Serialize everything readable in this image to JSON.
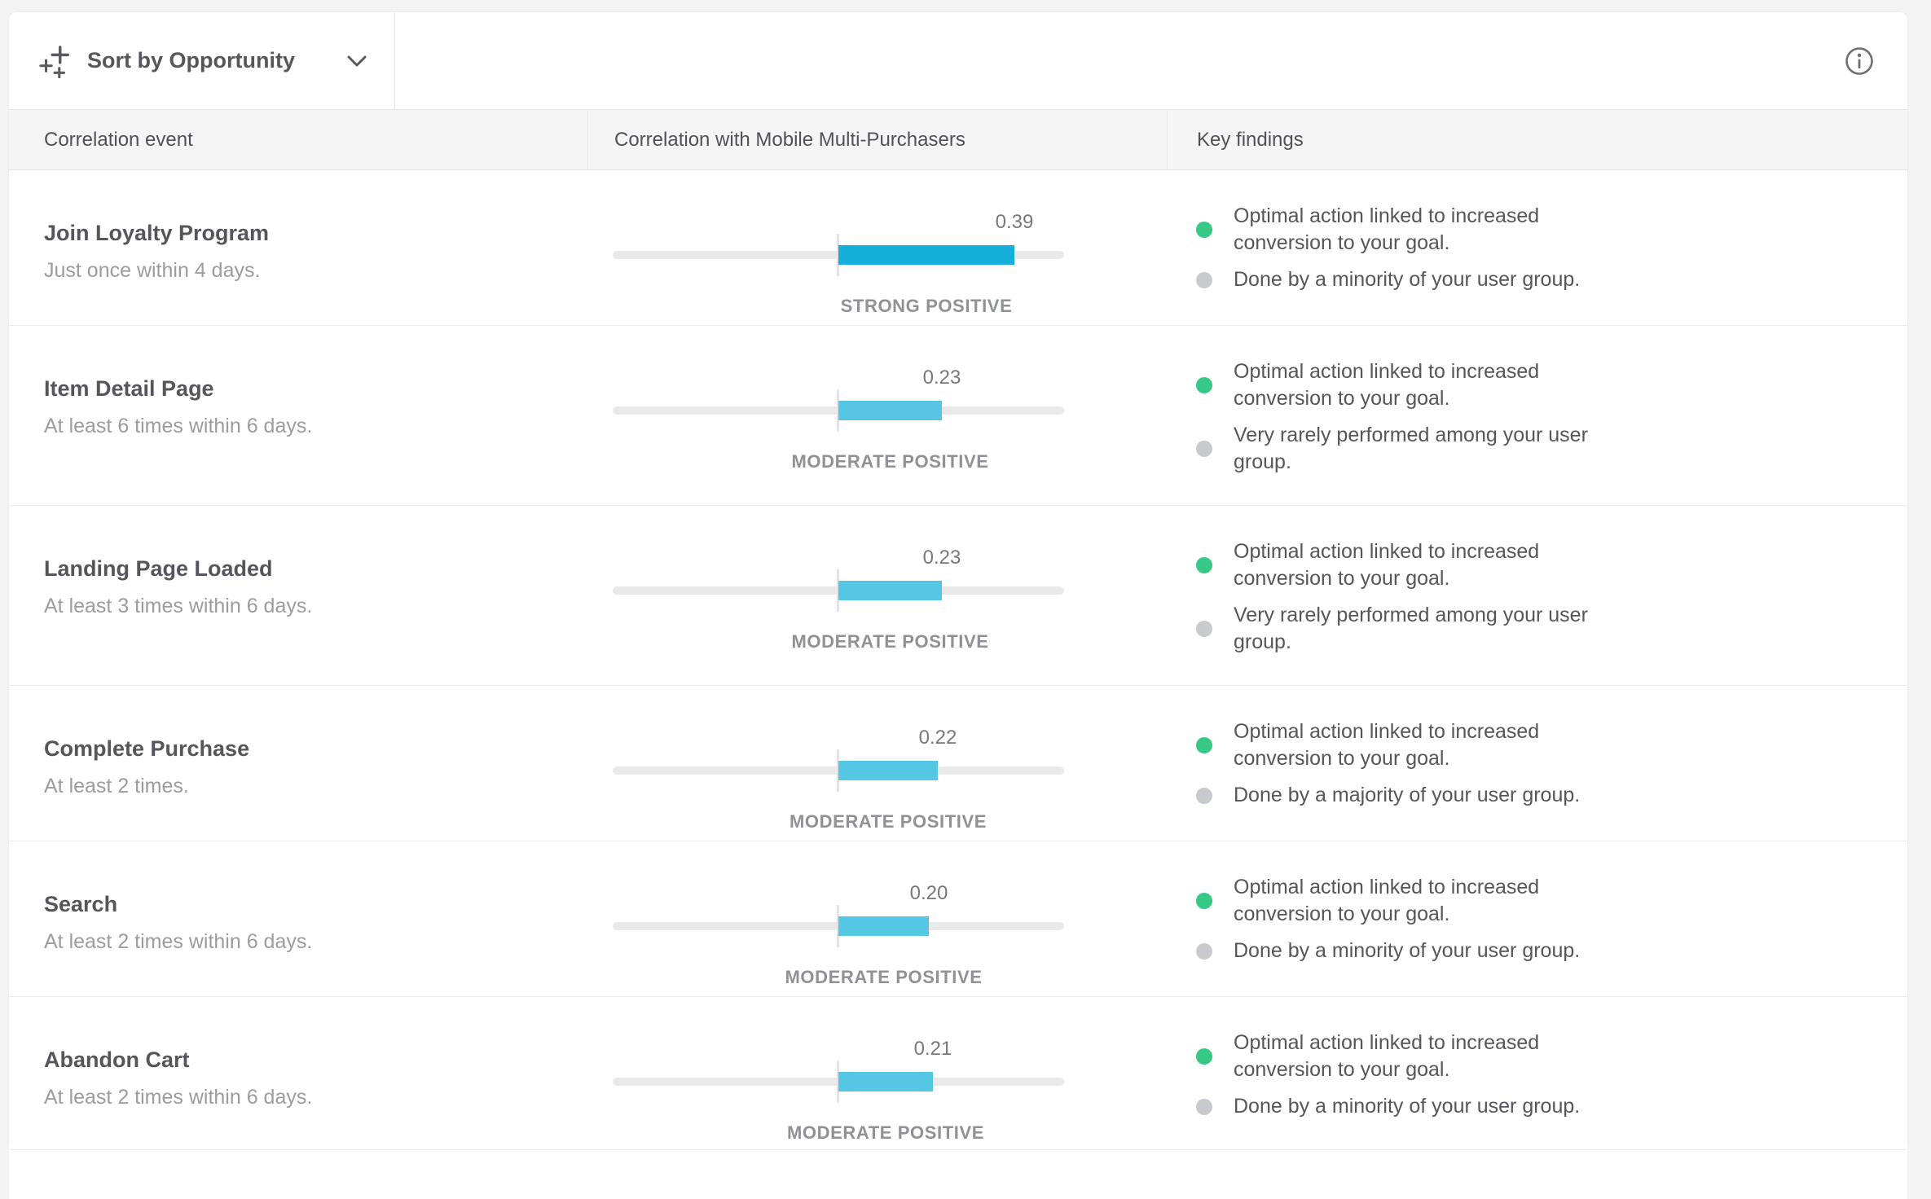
{
  "toolbar": {
    "sort_label": "Sort by Opportunity",
    "sort_icon": "sparkle-plus-icon",
    "info_icon": "info-circle-icon"
  },
  "table": {
    "columns": {
      "event": "Correlation event",
      "correlation": "Correlation with Mobile Multi-Purchasers",
      "findings": "Key findings"
    }
  },
  "colors": {
    "bar_strong": "#14b0d9",
    "bar_moderate": "#55c6e4",
    "dot_positive": "#36c986",
    "dot_neutral": "#c9cacd"
  },
  "chart_data": {
    "type": "bar",
    "orientation": "horizontal-diverging",
    "axis_range": [
      -0.5,
      0.5
    ],
    "categories": [
      "Join Loyalty Program",
      "Item Detail Page",
      "Landing Page Loaded",
      "Complete Purchase",
      "Search",
      "Abandon Cart"
    ],
    "values": [
      0.39,
      0.23,
      0.23,
      0.22,
      0.2,
      0.21
    ]
  },
  "rows": [
    {
      "event": "Join Loyalty Program",
      "criteria": "Just once within 4 days.",
      "value": "0.39",
      "value_num": 0.39,
      "tier": "STRONG POSITIVE",
      "strength": "strong",
      "findings": [
        {
          "dot": "positive",
          "text": "Optimal action linked to increased conversion to your goal."
        },
        {
          "dot": "neutral",
          "text": "Done by a minority of your user group."
        }
      ]
    },
    {
      "event": "Item Detail Page",
      "criteria": "At least 6 times within 6 days.",
      "value": "0.23",
      "value_num": 0.23,
      "tier": "MODERATE POSITIVE",
      "strength": "moderate",
      "findings": [
        {
          "dot": "positive",
          "text": "Optimal action linked to increased conversion to your goal."
        },
        {
          "dot": "neutral",
          "text": "Very rarely performed among your user group."
        }
      ]
    },
    {
      "event": "Landing Page Loaded",
      "criteria": "At least 3 times within 6 days.",
      "value": "0.23",
      "value_num": 0.23,
      "tier": "MODERATE POSITIVE",
      "strength": "moderate",
      "findings": [
        {
          "dot": "positive",
          "text": "Optimal action linked to increased conversion to your goal."
        },
        {
          "dot": "neutral",
          "text": "Very rarely performed among your user group."
        }
      ]
    },
    {
      "event": "Complete Purchase",
      "criteria": "At least 2 times.",
      "value": "0.22",
      "value_num": 0.22,
      "tier": "MODERATE POSITIVE",
      "strength": "moderate",
      "findings": [
        {
          "dot": "positive",
          "text": "Optimal action linked to increased conversion to your goal."
        },
        {
          "dot": "neutral",
          "text": "Done by a majority of your user group."
        }
      ]
    },
    {
      "event": "Search",
      "criteria": "At least 2 times within 6 days.",
      "value": "0.20",
      "value_num": 0.2,
      "tier": "MODERATE POSITIVE",
      "strength": "moderate",
      "findings": [
        {
          "dot": "positive",
          "text": "Optimal action linked to increased conversion to your goal."
        },
        {
          "dot": "neutral",
          "text": "Done by a minority of your user group."
        }
      ]
    },
    {
      "event": "Abandon Cart",
      "criteria": "At least 2 times within 6 days.",
      "value": "0.21",
      "value_num": 0.21,
      "tier": "MODERATE POSITIVE",
      "strength": "moderate",
      "findings": [
        {
          "dot": "positive",
          "text": "Optimal action linked to increased conversion to your goal."
        },
        {
          "dot": "neutral",
          "text": "Done by a minority of your user group."
        }
      ]
    }
  ]
}
